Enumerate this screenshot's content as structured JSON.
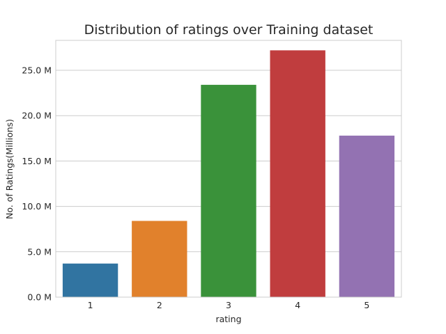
{
  "chart_data": {
    "type": "bar",
    "title": "Distribution of ratings over Training dataset",
    "xlabel": "rating",
    "ylabel": "No. of Ratings(Millions)",
    "categories": [
      "1",
      "2",
      "3",
      "4",
      "5"
    ],
    "values": [
      3.7,
      8.4,
      23.4,
      27.2,
      17.8
    ],
    "colors": [
      "#3174a1",
      "#e1812c",
      "#3a923a",
      "#c03d3e",
      "#9372b2"
    ],
    "ylim": [
      0,
      28.3
    ],
    "yticks": [
      0,
      5,
      10,
      15,
      20,
      25
    ],
    "ytick_labels": [
      "0.0 M",
      "5.0 M",
      "10.0 M",
      "15.0 M",
      "20.0 M",
      "25.0 M"
    ],
    "grid": "horizontal",
    "legend": "none"
  }
}
